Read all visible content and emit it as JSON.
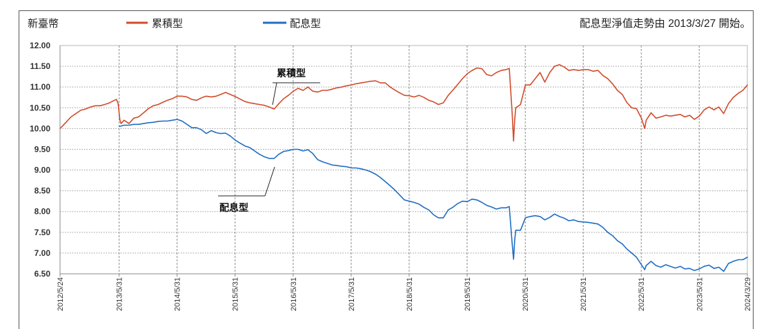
{
  "header": {
    "currency": "新臺幣",
    "note": "配息型淨值走勢由 2013/3/27 開始。"
  },
  "chart_data": {
    "type": "line",
    "title": "",
    "xlabel": "",
    "ylabel": "",
    "xlim": [
      "2012/5/24",
      "2024/3/29"
    ],
    "ylim": [
      6.5,
      12.0
    ],
    "y_ticks": [
      "12.00",
      "11.50",
      "11.00",
      "10.50",
      "10.00",
      "9.50",
      "9.00",
      "8.50",
      "8.00",
      "7.50",
      "7.00",
      "6.50"
    ],
    "x_ticks": [
      "2012/5/24",
      "2013/5/31",
      "2014/5/31",
      "2015/5/31",
      "2016/5/31",
      "2017/5/31",
      "2018/5/31",
      "2019/5/31",
      "2020/5/31",
      "2021/5/31",
      "2022/5/31",
      "2023/5/31",
      "2024/3/29"
    ],
    "grid": true,
    "legend": "top",
    "annotations": [
      "累積型",
      "配息型"
    ],
    "series": [
      {
        "name": "累積型",
        "color": "#d14b2a",
        "x": [
          "2012/5/24",
          "2012/6/1",
          "2012/7/1",
          "2012/8/1",
          "2012/9/1",
          "2012/10/1",
          "2012/11/1",
          "2012/12/1",
          "2013/1/1",
          "2013/2/1",
          "2013/3/1",
          "2013/4/1",
          "2013/5/1",
          "2013/5/15",
          "2013/5/25",
          "2013/6/5",
          "2013/6/12",
          "2013/7/1",
          "2013/8/1",
          "2013/9/1",
          "2013/10/1",
          "2013/11/1",
          "2013/12/1",
          "2014/1/1",
          "2014/2/1",
          "2014/3/1",
          "2014/4/1",
          "2014/5/1",
          "2014/6/1",
          "2014/7/1",
          "2014/8/1",
          "2014/9/1",
          "2014/10/1",
          "2014/11/1",
          "2014/12/1",
          "2015/1/1",
          "2015/2/1",
          "2015/3/1",
          "2015/4/1",
          "2015/5/1",
          "2015/6/1",
          "2015/7/1",
          "2015/8/1",
          "2015/9/1",
          "2015/10/1",
          "2015/11/1",
          "2015/12/1",
          "2016/1/1",
          "2016/2/1",
          "2016/3/1",
          "2016/4/1",
          "2016/5/1",
          "2016/6/1",
          "2016/7/1",
          "2016/8/1",
          "2016/9/1",
          "2016/10/1",
          "2016/11/1",
          "2016/12/1",
          "2017/1/1",
          "2017/2/1",
          "2017/3/1",
          "2017/4/1",
          "2017/5/1",
          "2017/6/1",
          "2017/7/1",
          "2017/8/1",
          "2017/9/1",
          "2017/10/1",
          "2017/11/1",
          "2017/12/1",
          "2018/1/1",
          "2018/2/1",
          "2018/3/1",
          "2018/4/1",
          "2018/5/1",
          "2018/6/1",
          "2018/7/1",
          "2018/8/1",
          "2018/9/1",
          "2018/10/1",
          "2018/11/1",
          "2018/12/1",
          "2019/1/1",
          "2019/2/1",
          "2019/3/1",
          "2019/4/1",
          "2019/5/1",
          "2019/6/1",
          "2019/7/1",
          "2019/8/1",
          "2019/9/1",
          "2019/10/1",
          "2019/11/1",
          "2019/12/1",
          "2020/1/1",
          "2020/2/1",
          "2020/2/20",
          "2020/3/9",
          "2020/3/18",
          "2020/3/25",
          "2020/4/1",
          "2020/5/1",
          "2020/6/1",
          "2020/7/1",
          "2020/8/1",
          "2020/9/1",
          "2020/10/1",
          "2020/11/1",
          "2020/12/1",
          "2021/1/1",
          "2021/2/1",
          "2021/3/1",
          "2021/4/1",
          "2021/5/1",
          "2021/6/1",
          "2021/7/1",
          "2021/8/1",
          "2021/9/1",
          "2021/10/1",
          "2021/11/1",
          "2021/12/1",
          "2022/1/1",
          "2022/2/1",
          "2022/3/1",
          "2022/4/1",
          "2022/5/1",
          "2022/6/1",
          "2022/6/22",
          "2022/7/1",
          "2022/8/1",
          "2022/9/1",
          "2022/10/1",
          "2022/11/1",
          "2022/12/1",
          "2023/1/1",
          "2023/2/1",
          "2023/3/1",
          "2023/4/1",
          "2023/5/1",
          "2023/6/1",
          "2023/7/1",
          "2023/8/1",
          "2023/9/1",
          "2023/10/1",
          "2023/11/1",
          "2023/12/1",
          "2024/1/1",
          "2024/2/1",
          "2024/3/1",
          "2024/3/29"
        ],
        "y": [
          10.0,
          10.03,
          10.15,
          10.28,
          10.36,
          10.44,
          10.47,
          10.52,
          10.55,
          10.55,
          10.58,
          10.62,
          10.68,
          10.7,
          10.6,
          10.2,
          10.12,
          10.2,
          10.12,
          10.25,
          10.28,
          10.38,
          10.48,
          10.55,
          10.58,
          10.63,
          10.68,
          10.72,
          10.78,
          10.78,
          10.76,
          10.7,
          10.68,
          10.74,
          10.78,
          10.76,
          10.78,
          10.82,
          10.87,
          10.82,
          10.77,
          10.71,
          10.65,
          10.62,
          10.6,
          10.58,
          10.56,
          10.52,
          10.47,
          10.6,
          10.72,
          10.8,
          10.9,
          10.97,
          10.92,
          11.0,
          10.9,
          10.88,
          10.92,
          10.92,
          10.95,
          10.98,
          11.0,
          11.03,
          11.05,
          11.08,
          11.1,
          11.12,
          11.14,
          11.15,
          11.1,
          11.1,
          11.0,
          10.93,
          10.86,
          10.8,
          10.79,
          10.76,
          10.8,
          10.75,
          10.68,
          10.64,
          10.58,
          10.62,
          10.8,
          10.92,
          11.06,
          11.2,
          11.32,
          11.4,
          11.46,
          11.44,
          11.3,
          11.27,
          11.35,
          11.4,
          11.42,
          11.45,
          10.4,
          9.7,
          10.2,
          10.5,
          10.58,
          11.05,
          11.05,
          11.2,
          11.35,
          11.12,
          11.35,
          11.5,
          11.54,
          11.48,
          11.4,
          11.42,
          11.4,
          11.42,
          11.42,
          11.38,
          11.4,
          11.28,
          11.2,
          11.08,
          10.92,
          10.82,
          10.63,
          10.5,
          10.48,
          10.25,
          10.0,
          10.2,
          10.38,
          10.25,
          10.28,
          10.32,
          10.3,
          10.32,
          10.34,
          10.28,
          10.32,
          10.22,
          10.3,
          10.45,
          10.52,
          10.45,
          10.52,
          10.36,
          10.6,
          10.75,
          10.85,
          10.92,
          11.05
        ]
      },
      {
        "name": "配息型",
        "color": "#1f6dc2",
        "x": [
          "2013/6/1",
          "2013/7/1",
          "2013/8/1",
          "2013/9/1",
          "2013/10/1",
          "2013/11/1",
          "2013/12/1",
          "2014/1/1",
          "2014/2/1",
          "2014/3/1",
          "2014/4/1",
          "2014/5/1",
          "2014/6/1",
          "2014/7/1",
          "2014/8/1",
          "2014/9/1",
          "2014/10/1",
          "2014/11/1",
          "2014/12/1",
          "2015/1/1",
          "2015/2/1",
          "2015/3/1",
          "2015/4/1",
          "2015/5/1",
          "2015/6/1",
          "2015/7/1",
          "2015/8/1",
          "2015/9/1",
          "2015/10/1",
          "2015/11/1",
          "2015/12/1",
          "2016/1/1",
          "2016/2/1",
          "2016/3/1",
          "2016/4/1",
          "2016/5/1",
          "2016/6/1",
          "2016/7/1",
          "2016/8/1",
          "2016/9/1",
          "2016/10/1",
          "2016/11/1",
          "2016/12/1",
          "2017/1/1",
          "2017/2/1",
          "2017/3/1",
          "2017/4/1",
          "2017/5/1",
          "2017/6/1",
          "2017/7/1",
          "2017/8/1",
          "2017/9/1",
          "2017/10/1",
          "2017/11/1",
          "2017/12/1",
          "2018/1/1",
          "2018/2/1",
          "2018/3/1",
          "2018/4/1",
          "2018/5/1",
          "2018/6/1",
          "2018/7/1",
          "2018/8/1",
          "2018/9/1",
          "2018/10/1",
          "2018/11/1",
          "2018/12/1",
          "2019/1/1",
          "2019/2/1",
          "2019/3/1",
          "2019/4/1",
          "2019/5/1",
          "2019/6/1",
          "2019/7/1",
          "2019/8/1",
          "2019/9/1",
          "2019/10/1",
          "2019/11/1",
          "2019/12/1",
          "2020/1/1",
          "2020/2/1",
          "2020/2/20",
          "2020/3/9",
          "2020/3/18",
          "2020/3/25",
          "2020/4/1",
          "2020/5/1",
          "2020/6/1",
          "2020/7/1",
          "2020/8/1",
          "2020/9/1",
          "2020/10/1",
          "2020/11/1",
          "2020/12/1",
          "2021/1/1",
          "2021/2/1",
          "2021/3/1",
          "2021/4/1",
          "2021/5/1",
          "2021/6/1",
          "2021/7/1",
          "2021/8/1",
          "2021/9/1",
          "2021/10/1",
          "2021/11/1",
          "2021/12/1",
          "2022/1/1",
          "2022/2/1",
          "2022/3/1",
          "2022/4/1",
          "2022/5/1",
          "2022/6/1",
          "2022/6/22",
          "2022/7/1",
          "2022/8/1",
          "2022/9/1",
          "2022/10/1",
          "2022/11/1",
          "2022/12/1",
          "2023/1/1",
          "2023/2/1",
          "2023/3/1",
          "2023/4/1",
          "2023/5/1",
          "2023/6/1",
          "2023/7/1",
          "2023/8/1",
          "2023/9/1",
          "2023/10/1",
          "2023/11/1",
          "2023/12/1",
          "2024/1/1",
          "2024/2/1",
          "2024/3/1",
          "2024/3/29"
        ],
        "y": [
          10.05,
          10.08,
          10.08,
          10.1,
          10.1,
          10.12,
          10.14,
          10.15,
          10.17,
          10.18,
          10.18,
          10.2,
          10.22,
          10.18,
          10.1,
          10.02,
          10.02,
          9.97,
          9.88,
          9.95,
          9.9,
          9.88,
          9.89,
          9.82,
          9.72,
          9.65,
          9.58,
          9.54,
          9.46,
          9.38,
          9.32,
          9.28,
          9.28,
          9.38,
          9.45,
          9.47,
          9.5,
          9.5,
          9.46,
          9.49,
          9.4,
          9.25,
          9.2,
          9.16,
          9.12,
          9.11,
          9.09,
          9.08,
          9.05,
          9.05,
          9.03,
          9.0,
          8.96,
          8.9,
          8.82,
          8.72,
          8.62,
          8.52,
          8.4,
          8.28,
          8.25,
          8.22,
          8.18,
          8.1,
          8.04,
          7.92,
          7.85,
          7.85,
          8.04,
          8.1,
          8.19,
          8.25,
          8.24,
          8.3,
          8.28,
          8.22,
          8.15,
          8.11,
          8.06,
          8.09,
          8.09,
          8.12,
          7.25,
          6.85,
          7.3,
          7.55,
          7.55,
          7.85,
          7.88,
          7.9,
          7.88,
          7.8,
          7.86,
          7.94,
          7.88,
          7.84,
          7.78,
          7.8,
          7.76,
          7.75,
          7.74,
          7.72,
          7.7,
          7.62,
          7.5,
          7.42,
          7.3,
          7.22,
          7.1,
          7.0,
          6.9,
          6.72,
          6.6,
          6.7,
          6.8,
          6.7,
          6.66,
          6.72,
          6.68,
          6.64,
          6.68,
          6.62,
          6.63,
          6.58,
          6.62,
          6.68,
          6.71,
          6.63,
          6.66,
          6.56,
          6.75,
          6.8,
          6.84,
          6.84,
          6.9
        ]
      }
    ]
  }
}
